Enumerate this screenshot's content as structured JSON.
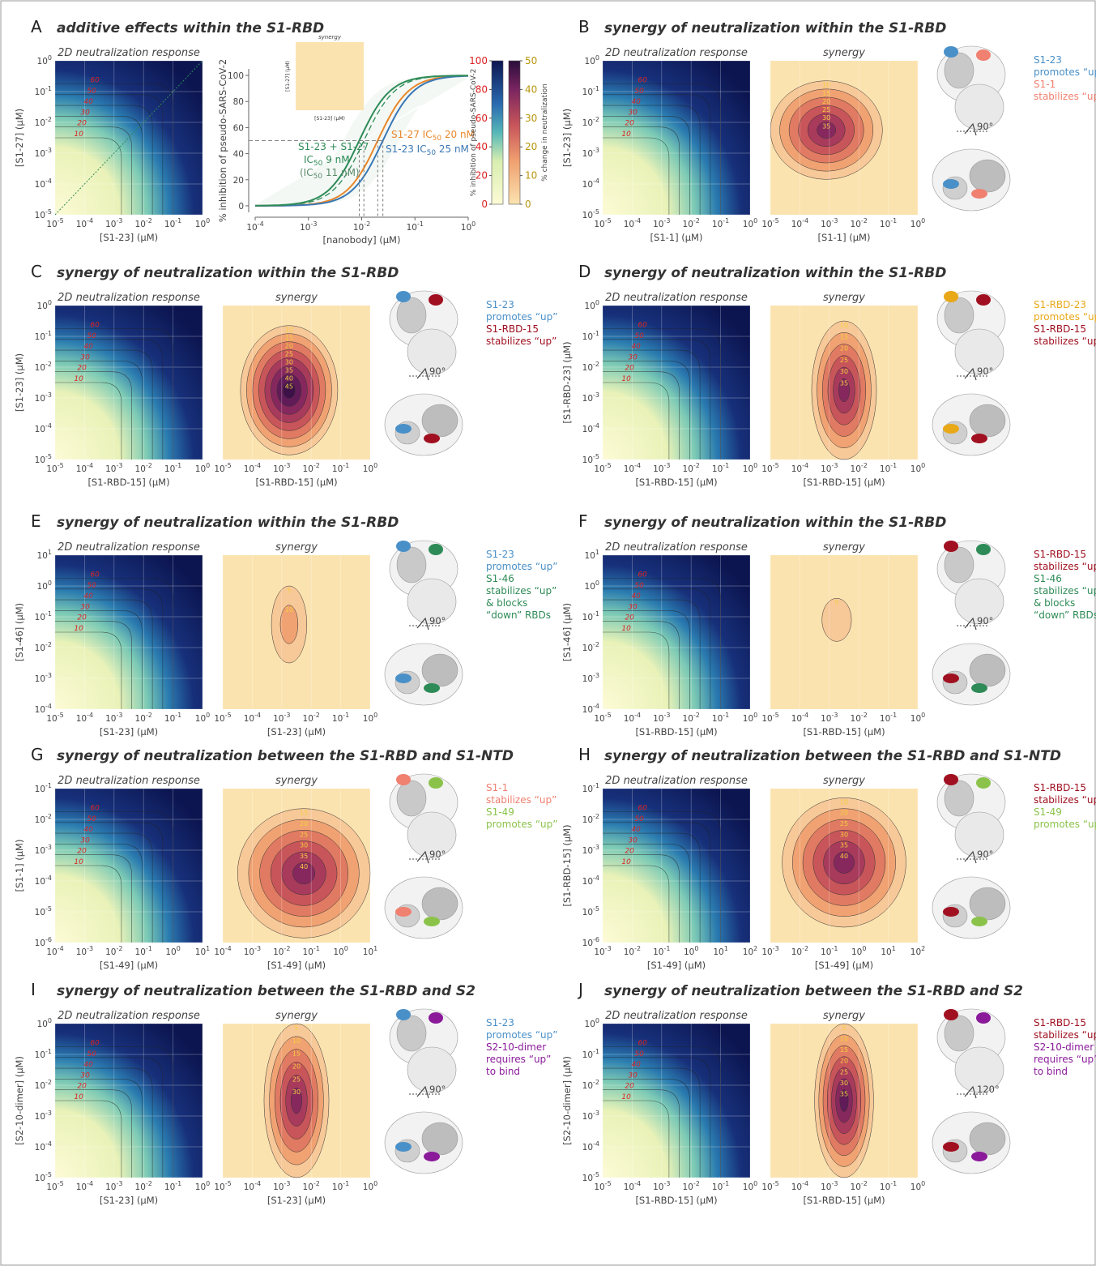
{
  "tick_base": "10",
  "panel_a": {
    "letter": "A",
    "title": "additive effects within the S1-RBD",
    "response_label": "2D neutralization response",
    "x_label": "[S1-23] (μM)",
    "y_label": "[S1-27] (μM)",
    "x_exps": [
      "-5",
      "-4",
      "-3",
      "-2",
      "-1",
      "0"
    ],
    "y_exps": [
      "-5",
      "-4",
      "-3",
      "-2",
      "-1",
      "0"
    ],
    "response_contours": [
      10,
      20,
      30,
      40,
      50,
      60
    ],
    "curve_chart": {
      "type": "line",
      "y_label": "% inhibition of pseudo-SARS-CoV-2",
      "x_label": "[nanobody] (μM)",
      "x_exps": [
        "-4",
        "-3",
        "-2",
        "-1",
        "0"
      ],
      "yticks": [
        0,
        20,
        40,
        60,
        80,
        100
      ],
      "ylim": [
        -5,
        105
      ],
      "series": [
        {
          "color": "#e8872a",
          "ic50": 0.02,
          "label": "S1-27 IC",
          "label_sub": "50",
          "label_post": " 20 nM"
        },
        {
          "color": "#3a78b5",
          "ic50": 0.025,
          "label": "S1-23 IC",
          "label_sub": "50",
          "label_post": " 25 nM"
        },
        {
          "color": "#2e8b57",
          "ic50": 0.009,
          "label": "S1-23 + S1-27",
          "label2": "IC",
          "label_sub": "50",
          "label_post": " 9 nM"
        }
      ],
      "extra_note": {
        "pre": "(IC",
        "sub": "50",
        "post": " 11 nM)",
        "ic50": 0.011
      },
      "inset": {
        "title": "synergy",
        "x_label": "[S1-23] (μM)",
        "y_label": "[S1-27] (μM)"
      }
    },
    "colorbar_inhibition": {
      "label": "% inhibition of pseudo-SARS-CoV-2",
      "ticks": [
        0,
        20,
        40,
        60,
        80,
        100
      ],
      "lim": [
        0,
        100
      ]
    },
    "colorbar_change": {
      "label": "% change in neutralization",
      "ticks": [
        0,
        10,
        20,
        30,
        40,
        50
      ],
      "lim": [
        0,
        50
      ]
    }
  },
  "panels": [
    {
      "letter": "B",
      "title": "synergy of neutralization within the S1-RBD",
      "response_label": "2D neutralization response",
      "synergy_label": "synergy",
      "x_label": "[S1-1] (μM)",
      "y_label": "[S1-23] (μM)",
      "x_exps": [
        "-5",
        "-4",
        "-3",
        "-2",
        "-1",
        "0"
      ],
      "y_exps": [
        "-5",
        "-4",
        "-3",
        "-2",
        "-1",
        "0"
      ],
      "response_contours": [
        10,
        20,
        30,
        40,
        50,
        60
      ],
      "synergy_contours": [
        10,
        15,
        20,
        25,
        30,
        35
      ],
      "rotation": "90°",
      "legend": [
        {
          "text": "S1-23",
          "color": "#4a90c8"
        },
        {
          "text": "promotes “up”",
          "color": "#4a90c8"
        },
        {
          "text": "S1-1",
          "color": "#f08070"
        },
        {
          "text": "stabilizes “up”",
          "color": "#f08070"
        }
      ]
    },
    {
      "letter": "C",
      "title": "synergy of neutralization within the S1-RBD",
      "response_label": "2D neutralization response",
      "synergy_label": "synergy",
      "x_label": "[S1-RBD-15] (μM)",
      "y_label": "[S1-23] (μM)",
      "x_exps": [
        "-5",
        "-4",
        "-3",
        "-2",
        "-1",
        "0"
      ],
      "y_exps": [
        "-5",
        "-4",
        "-3",
        "-2",
        "-1",
        "0"
      ],
      "response_contours": [
        10,
        20,
        30,
        40,
        50,
        60
      ],
      "synergy_contours": [
        10,
        15,
        20,
        25,
        30,
        35,
        40,
        45
      ],
      "rotation": "90°",
      "legend": [
        {
          "text": "S1-23",
          "color": "#4a90c8"
        },
        {
          "text": "promotes “up”",
          "color": "#4a90c8"
        },
        {
          "text": "S1-RBD-15",
          "color": "#a01020"
        },
        {
          "text": "stabilizes “up”",
          "color": "#a01020"
        }
      ]
    },
    {
      "letter": "D",
      "title": "synergy of neutralization within the S1-RBD",
      "response_label": "2D neutralization response",
      "synergy_label": "synergy",
      "x_label": "[S1-RBD-15] (μM)",
      "y_label": "[S1-RBD-23] (μM)",
      "x_exps": [
        "-5",
        "-4",
        "-3",
        "-2",
        "-1",
        "0"
      ],
      "y_exps": [
        "-5",
        "-4",
        "-3",
        "-2",
        "-1",
        "0"
      ],
      "response_contours": [
        10,
        20,
        30,
        40,
        50,
        60
      ],
      "synergy_contours": [
        10,
        15,
        20,
        25,
        30,
        35
      ],
      "rotation": "90°",
      "legend": [
        {
          "text": "S1-RBD-23",
          "color": "#e8a818"
        },
        {
          "text": "promotes “up”",
          "color": "#e8a818"
        },
        {
          "text": "S1-RBD-15",
          "color": "#a01020"
        },
        {
          "text": "stabilizes “up”",
          "color": "#a01020"
        }
      ]
    },
    {
      "letter": "E",
      "title": "synergy of neutralization within the S1-RBD",
      "response_label": "2D neutralization response",
      "synergy_label": "synergy",
      "x_label": "[S1-23] (μM)",
      "y_label": "[S1-46] (μM)",
      "x_exps": [
        "-5",
        "-4",
        "-3",
        "-2",
        "-1",
        "0"
      ],
      "y_exps": [
        "-4",
        "-3",
        "-2",
        "-1",
        "0",
        "1"
      ],
      "response_contours": [
        10,
        20,
        30,
        40,
        50,
        60
      ],
      "synergy_contours": [
        5,
        10
      ],
      "rotation": "90°",
      "legend": [
        {
          "text": "S1-23",
          "color": "#4a90c8"
        },
        {
          "text": "promotes “up”",
          "color": "#4a90c8"
        },
        {
          "text": "S1-46",
          "color": "#2e8b57"
        },
        {
          "text": "stabilizes “up”",
          "color": "#2e8b57"
        },
        {
          "text": "& blocks",
          "color": "#2e8b57"
        },
        {
          "text": "“down” RBDs",
          "color": "#2e8b57"
        }
      ]
    },
    {
      "letter": "F",
      "title": "synergy of neutralization within the S1-RBD",
      "response_label": "2D neutralization response",
      "synergy_label": "synergy",
      "x_label": "[S1-RBD-15] (μM)",
      "y_label": "[S1-46] (μM)",
      "x_exps": [
        "-5",
        "-4",
        "-3",
        "-2",
        "-1",
        "0"
      ],
      "y_exps": [
        "-4",
        "-3",
        "-2",
        "-1",
        "0",
        "1"
      ],
      "response_contours": [
        10,
        20,
        30,
        40,
        50,
        60
      ],
      "synergy_contours": [
        5
      ],
      "rotation": "90°",
      "legend": [
        {
          "text": "S1-RBD-15",
          "color": "#a01020"
        },
        {
          "text": "stabilizes “up”",
          "color": "#a01020"
        },
        {
          "text": "S1-46",
          "color": "#2e8b57"
        },
        {
          "text": "stabilizes “up”",
          "color": "#2e8b57"
        },
        {
          "text": "& blocks",
          "color": "#2e8b57"
        },
        {
          "text": "“down” RBDs",
          "color": "#2e8b57"
        }
      ]
    },
    {
      "letter": "G",
      "title": "synergy of neutralization between the S1-RBD and S1-NTD",
      "response_label": "2D neutralization response",
      "synergy_label": "synergy",
      "x_label": "[S1-49] (μM)",
      "y_label": "[S1-1] (μM)",
      "x_exps": [
        "-4",
        "-3",
        "-2",
        "-1",
        "0",
        "1"
      ],
      "y_exps": [
        "-6",
        "-5",
        "-4",
        "-3",
        "-2",
        "-1"
      ],
      "response_contours": [
        10,
        20,
        30,
        40,
        50,
        60
      ],
      "synergy_contours": [
        15,
        20,
        25,
        30,
        35,
        40
      ],
      "rotation": "90°",
      "legend": [
        {
          "text": "S1-1",
          "color": "#f08070"
        },
        {
          "text": "stabilizes “up”",
          "color": "#f08070"
        },
        {
          "text": "S1-49",
          "color": "#8bc34a"
        },
        {
          "text": "promotes “up”",
          "color": "#8bc34a"
        }
      ]
    },
    {
      "letter": "H",
      "title": "synergy of neutralization between the S1-RBD and S1-NTD",
      "response_label": "2D neutralization response",
      "synergy_label": "synergy",
      "x_label": "[S1-49] (μM)",
      "y_label": "[S1-RBD-15] (μM)",
      "x_exps": [
        "-3",
        "-2",
        "-1",
        "0",
        "1",
        "2"
      ],
      "y_exps": [
        "-6",
        "-5",
        "-4",
        "-3",
        "-2",
        "-1"
      ],
      "response_contours": [
        10,
        20,
        30,
        40,
        50,
        60
      ],
      "synergy_contours": [
        10,
        20,
        25,
        30,
        35,
        40
      ],
      "rotation": "90°",
      "legend": [
        {
          "text": "S1-RBD-15",
          "color": "#a01020"
        },
        {
          "text": "stabilizes “up”",
          "color": "#a01020"
        },
        {
          "text": "S1-49",
          "color": "#8bc34a"
        },
        {
          "text": "promotes “up”",
          "color": "#8bc34a"
        }
      ]
    },
    {
      "letter": "I",
      "title": "synergy of neutralization between the S1-RBD and S2",
      "response_label": "2D neutralization response",
      "synergy_label": "synergy",
      "x_label": "[S1-23] (μM)",
      "y_label": "[S2-10-dimer] (μM)",
      "x_exps": [
        "-5",
        "-4",
        "-3",
        "-2",
        "-1",
        "0"
      ],
      "y_exps": [
        "-5",
        "-4",
        "-3",
        "-2",
        "-1",
        "0"
      ],
      "response_contours": [
        10,
        20,
        30,
        40,
        50,
        60
      ],
      "synergy_contours": [
        5,
        10,
        15,
        20,
        25,
        30
      ],
      "rotation": "90°",
      "legend": [
        {
          "text": "S1-23",
          "color": "#4a90c8"
        },
        {
          "text": "promotes “up”",
          "color": "#4a90c8"
        },
        {
          "text": "S2-10-dimer",
          "color": "#8a1a9a"
        },
        {
          "text": "requires “up”",
          "color": "#8a1a9a"
        },
        {
          "text": "to bind",
          "color": "#8a1a9a"
        }
      ]
    },
    {
      "letter": "J",
      "title": "synergy of neutralization between the S1-RBD and S2",
      "response_label": "2D neutralization response",
      "synergy_label": "synergy",
      "x_label": "[S1-RBD-15] (μM)",
      "y_label": "[S2-10-dimer] (μM)",
      "x_exps": [
        "-5",
        "-4",
        "-3",
        "-2",
        "-1",
        "0"
      ],
      "y_exps": [
        "-5",
        "-4",
        "-3",
        "-2",
        "-1",
        "0"
      ],
      "response_contours": [
        10,
        20,
        30,
        40,
        50,
        60
      ],
      "synergy_contours": [
        5,
        10,
        15,
        20,
        25,
        30,
        35
      ],
      "rotation": "120°",
      "legend": [
        {
          "text": "S1-RBD-15",
          "color": "#a01020"
        },
        {
          "text": "stabilizes “up”",
          "color": "#a01020"
        },
        {
          "text": "S2-10-dimer",
          "color": "#8a1a9a"
        },
        {
          "text": "requires “up”",
          "color": "#8a1a9a"
        },
        {
          "text": "to bind",
          "color": "#8a1a9a"
        }
      ]
    }
  ]
}
